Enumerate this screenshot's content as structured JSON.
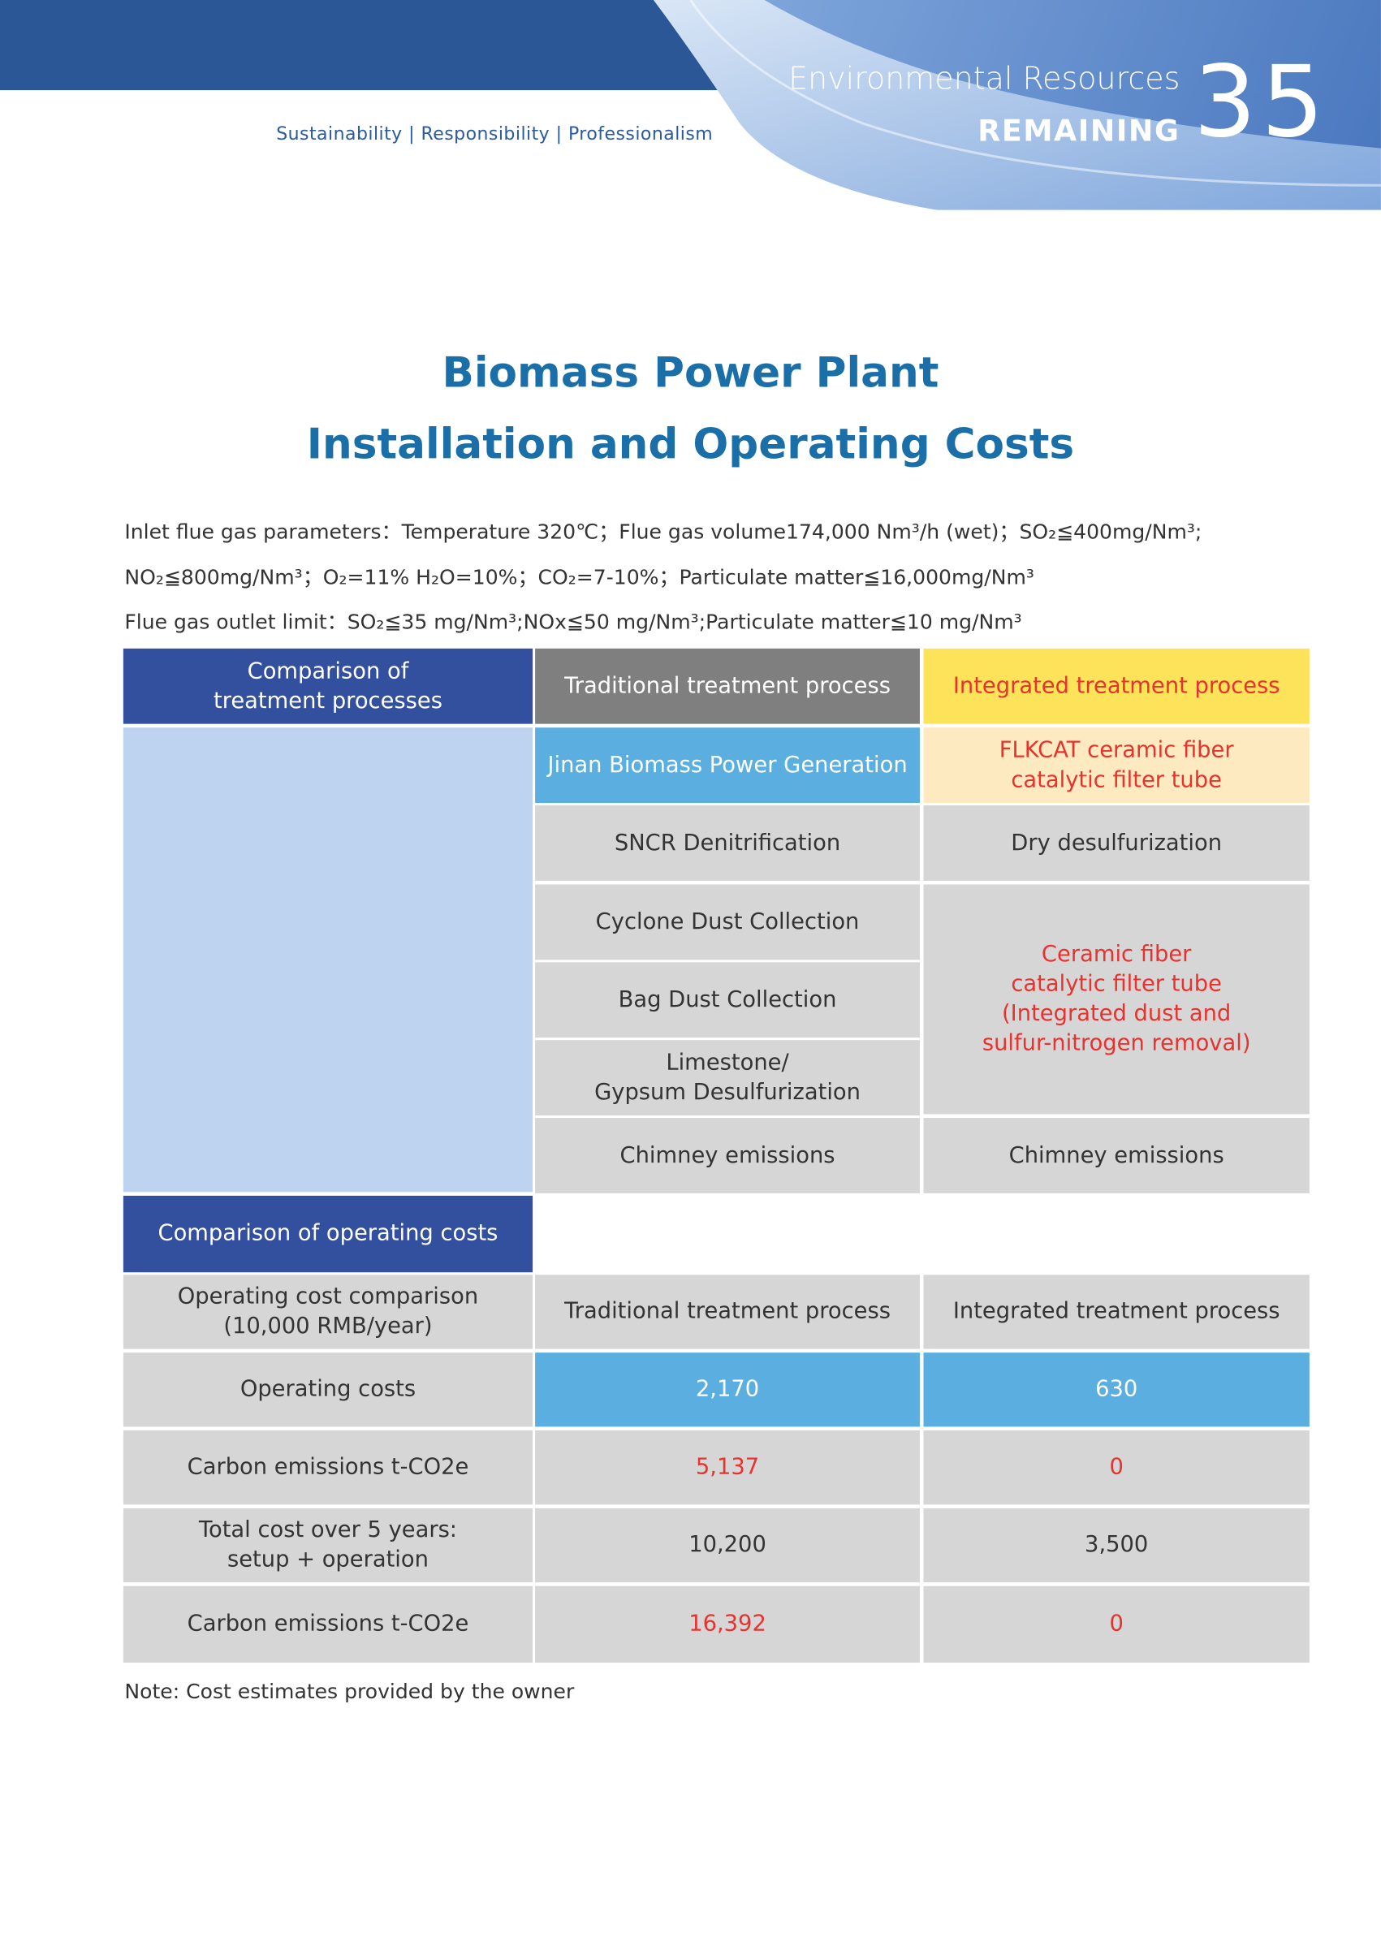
{
  "header": {
    "tagline": "Sustainability | Responsibility | Professionalism",
    "brand_line1": "Environmental Resources",
    "brand_line2": "REMAINING",
    "page_number": "35"
  },
  "title": [
    "Biomass Power Plant",
    "Installation and Operating Costs"
  ],
  "parameters": [
    "Inlet flue gas parameters：Temperature 320℃；Flue gas volume174,000 Nm³/h (wet)；SO₂≦400mg/Nm³;",
    "NO₂≦800mg/Nm³；O₂=11%  H₂O=10%；CO₂=7-10%；Particulate matter≦16,000mg/Nm³",
    "Flue gas outlet limit：SO₂≦35 mg/Nm³;NOx≦50 mg/Nm³;Particulate matter≦10 mg/Nm³"
  ],
  "process_table": {
    "column_headers": [
      "Comparison of\ntreatment processes",
      "Traditional treatment process",
      "Integrated treatment process"
    ],
    "traditional": [
      "Jinan Biomass Power Generation",
      "SNCR Denitrification",
      "Cyclone Dust Collection",
      "Bag Dust Collection",
      "Limestone/\nGypsum Desulfurization",
      "Chimney emissions"
    ],
    "integrated": [
      "FLKCAT ceramic fiber\ncatalytic filter tube",
      "Dry desulfurization",
      "Ceramic fiber\ncatalytic filter tube\n(Integrated dust and\nsulfur-nitrogen removal)",
      "Chimney emissions"
    ]
  },
  "cost_table": {
    "section_title": "Comparison of operating costs",
    "column_headers": [
      "Operating cost comparison\n(10,000 RMB/year)",
      "Traditional treatment process",
      "Integrated treatment process"
    ],
    "rows": [
      [
        "Operating costs",
        "2,170",
        "630"
      ],
      [
        "Carbon emissions t-CO2e",
        "5,137",
        "0"
      ],
      [
        "Total cost over 5 years:\nsetup + operation",
        "10,200",
        "3,500"
      ],
      [
        "Carbon emissions t-CO2e",
        "16,392",
        "0"
      ]
    ]
  },
  "note": "Note: Cost estimates provided by the owner"
}
